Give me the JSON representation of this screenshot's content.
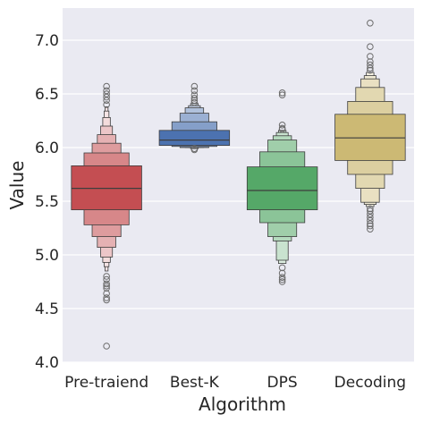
{
  "chart_data": {
    "type": "boxen",
    "xlabel": "Algorithm",
    "ylabel": "Value",
    "ylim": [
      4.0,
      7.3
    ],
    "yticks": [
      "4.0",
      "4.5",
      "5.0",
      "5.5",
      "6.0",
      "6.5",
      "7.0"
    ],
    "grid": true,
    "categories": [
      "Pre-traiend",
      "Best-K",
      "DPS",
      "Decoding"
    ],
    "series": [
      {
        "category": "Pre-traiend",
        "color": "#c44e52",
        "median": 5.62,
        "levels": [
          [
            5.42,
            5.83
          ],
          [
            5.28,
            5.95
          ],
          [
            5.17,
            6.04
          ],
          [
            5.07,
            6.12
          ],
          [
            4.98,
            6.2
          ],
          [
            4.93,
            6.28
          ],
          [
            4.89,
            6.34
          ],
          [
            4.85,
            6.38
          ]
        ],
        "outliers": [
          6.57,
          6.53,
          6.5,
          6.47,
          6.44,
          6.4,
          4.8,
          4.77,
          4.73,
          4.71,
          4.69,
          4.64,
          4.6,
          4.58,
          4.15
        ]
      },
      {
        "category": "Best-K",
        "color": "#4c72b0",
        "median": 6.07,
        "levels": [
          [
            6.02,
            6.16
          ],
          [
            6.01,
            6.24
          ],
          [
            6.0,
            6.32
          ],
          [
            6.0,
            6.37
          ],
          [
            6.0,
            6.39
          ],
          [
            5.99,
            6.41
          ]
        ],
        "outliers": [
          6.57,
          6.53,
          6.49,
          6.46,
          6.44,
          6.42,
          5.99,
          5.98
        ]
      },
      {
        "category": "DPS",
        "color": "#55a868",
        "median": 5.6,
        "levels": [
          [
            5.42,
            5.82
          ],
          [
            5.3,
            5.96
          ],
          [
            5.17,
            6.07
          ],
          [
            5.13,
            6.11
          ],
          [
            4.95,
            6.14
          ],
          [
            4.92,
            6.16
          ]
        ],
        "outliers": [
          6.51,
          6.49,
          6.21,
          6.18,
          6.17,
          4.88,
          4.83,
          4.79,
          4.77,
          4.75
        ]
      },
      {
        "category": "Decoding",
        "color": "#ccb974",
        "median": 6.09,
        "levels": [
          [
            5.88,
            6.31
          ],
          [
            5.75,
            6.43
          ],
          [
            5.62,
            6.56
          ],
          [
            5.49,
            6.64
          ],
          [
            5.47,
            6.67
          ],
          [
            5.45,
            6.7
          ]
        ],
        "outliers": [
          7.16,
          6.94,
          6.85,
          6.8,
          6.77,
          6.74,
          6.72,
          5.43,
          5.41,
          5.38,
          5.35,
          5.32,
          5.29,
          5.27,
          5.24
        ]
      }
    ]
  }
}
